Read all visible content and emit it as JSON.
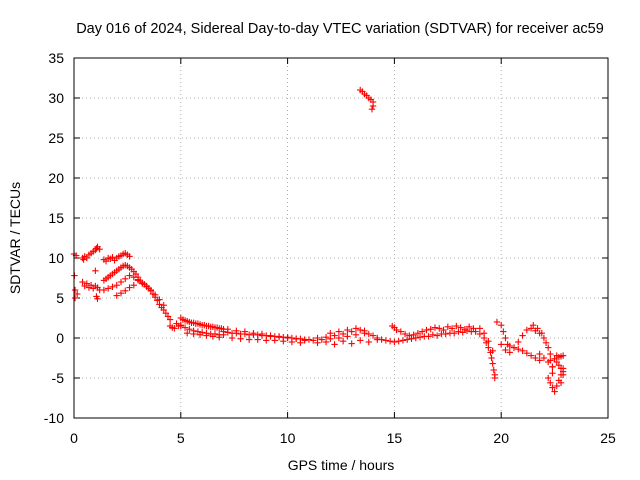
{
  "chart_data": {
    "type": "scatter",
    "title": "Day 016 of 2024, Sidereal Day-to-day VTEC variation (SDTVAR) for receiver ac59",
    "xlabel": "GPS time / hours",
    "ylabel": "SDTVAR / TECUs",
    "xlim": [
      0,
      25
    ],
    "ylim": [
      -10,
      35
    ],
    "xticks": [
      "0",
      "5",
      "10",
      "15",
      "20",
      "25"
    ],
    "yticks": [
      "-10",
      "-5",
      "0",
      "5",
      "10",
      "15",
      "20",
      "25",
      "30",
      "35"
    ],
    "grid": true,
    "marker": "+",
    "color": "#ff0000",
    "series": [
      {
        "name": "SDTVAR",
        "x": [
          0.0,
          0.02,
          0.05,
          0.05,
          0.1,
          0.15,
          0.4,
          0.45,
          0.5,
          0.6,
          0.7,
          0.8,
          0.9,
          1.0,
          1.05,
          1.1,
          1.2,
          0.4,
          0.5,
          0.6,
          0.7,
          0.8,
          0.9,
          1.0,
          1.1,
          1.2,
          1.0,
          1.05,
          1.1,
          1.4,
          1.5,
          1.6,
          1.7,
          1.8,
          1.9,
          2.0,
          2.1,
          2.2,
          2.3,
          2.4,
          2.5,
          2.6,
          1.4,
          1.5,
          1.6,
          1.7,
          1.8,
          1.9,
          2.0,
          2.1,
          2.2,
          2.3,
          2.4,
          2.5,
          2.6,
          2.7,
          2.8,
          2.9,
          3.0,
          1.4,
          1.6,
          1.8,
          2.0,
          2.2,
          2.4,
          2.6,
          2.8,
          3.0,
          2.0,
          2.2,
          2.4,
          2.6,
          2.8,
          3.0,
          3.1,
          3.2,
          3.3,
          3.4,
          3.5,
          3.6,
          3.7,
          3.8,
          3.9,
          4.0,
          4.1,
          4.2,
          4.3,
          4.4,
          4.5,
          3.2,
          3.4,
          3.6,
          3.8,
          4.0,
          4.2,
          4.5,
          4.6,
          4.7,
          4.8,
          4.9,
          5.0,
          5.0,
          5.1,
          5.2,
          5.3,
          5.4,
          5.5,
          5.6,
          5.7,
          5.8,
          5.9,
          6.0,
          6.1,
          6.2,
          6.3,
          6.4,
          6.5,
          6.6,
          6.7,
          6.8,
          6.9,
          7.0,
          5.0,
          5.2,
          5.4,
          5.6,
          5.8,
          6.0,
          6.2,
          6.4,
          6.6,
          6.8,
          7.0,
          5.3,
          5.6,
          5.9,
          6.2,
          6.5,
          6.8,
          7.0,
          7.2,
          7.4,
          7.6,
          7.8,
          8.0,
          8.2,
          8.4,
          8.6,
          8.8,
          9.0,
          9.2,
          9.4,
          9.6,
          9.8,
          10.0,
          10.2,
          10.4,
          10.6,
          10.8,
          11.0,
          7.2,
          7.6,
          8.0,
          8.4,
          8.8,
          9.2,
          9.6,
          10.0,
          10.4,
          10.8,
          7.4,
          7.8,
          8.2,
          8.6,
          9.0,
          9.4,
          9.8,
          10.2,
          10.6,
          11.2,
          11.4,
          11.6,
          11.8,
          12.0,
          12.2,
          12.4,
          12.6,
          12.8,
          13.0,
          13.2,
          13.4,
          13.6,
          13.8,
          14.0,
          14.2,
          14.4,
          14.6,
          14.8,
          11.4,
          11.8,
          12.2,
          12.6,
          13.0,
          13.4,
          13.8,
          14.2,
          12.0,
          12.4,
          12.8,
          13.2,
          13.6,
          13.4,
          13.5,
          13.6,
          13.7,
          13.8,
          13.9,
          14.0,
          14.0,
          13.95,
          14.9,
          15.0,
          15.1,
          15.3,
          15.5,
          15.7,
          15.9,
          16.1,
          16.3,
          16.5,
          16.7,
          16.9,
          17.1,
          17.3,
          17.5,
          17.7,
          17.9,
          18.1,
          18.3,
          18.5,
          18.7,
          15.0,
          15.4,
          15.8,
          16.2,
          16.6,
          17.0,
          17.4,
          17.8,
          18.2,
          18.6,
          15.2,
          15.6,
          16.0,
          16.4,
          16.8,
          17.2,
          17.6,
          18.0,
          18.4,
          18.8,
          19.0,
          19.2,
          19.3,
          19.4,
          19.5,
          19.55,
          19.6,
          19.65,
          19.7,
          19.7,
          19.0,
          19.2,
          19.4,
          19.6,
          19.8,
          20.0,
          20.1,
          20.2,
          20.3,
          20.0,
          20.2,
          20.4,
          20.6,
          20.8,
          21.0,
          21.2,
          21.4,
          21.6,
          21.8,
          20.4,
          20.6,
          20.8,
          21.0,
          21.2,
          21.4,
          21.6,
          21.8,
          21.5,
          21.7,
          21.9,
          22.0,
          22.1,
          22.2,
          22.3,
          22.3,
          22.4,
          22.4,
          21.8,
          22.0,
          22.2,
          22.4,
          22.2,
          22.3,
          22.4,
          22.5,
          22.6,
          22.7,
          22.8,
          22.9,
          22.5,
          22.6,
          22.7,
          22.8,
          22.9,
          22.6,
          22.7,
          22.8,
          22.9,
          22.9,
          22.8
        ],
        "y": [
          10.5,
          7.8,
          6.0,
          5.0,
          10.3,
          5.5,
          10.0,
          9.8,
          10.2,
          10.0,
          10.4,
          10.6,
          10.8,
          11.0,
          11.2,
          11.4,
          11.1,
          7.0,
          6.5,
          6.8,
          6.3,
          6.6,
          6.2,
          6.5,
          6.3,
          6.0,
          8.4,
          5.2,
          4.9,
          9.8,
          9.6,
          10.0,
          9.9,
          10.1,
          9.7,
          10.0,
          10.2,
          10.3,
          10.5,
          10.6,
          10.4,
          10.2,
          7.2,
          7.4,
          7.6,
          7.8,
          8.0,
          8.2,
          8.4,
          8.6,
          8.8,
          9.0,
          9.1,
          9.0,
          8.8,
          8.6,
          8.3,
          8.0,
          7.6,
          6.0,
          6.2,
          6.4,
          6.6,
          7.0,
          7.4,
          7.8,
          7.6,
          7.2,
          5.3,
          5.6,
          5.9,
          6.3,
          6.6,
          7.3,
          7.1,
          6.9,
          6.7,
          6.5,
          6.2,
          5.9,
          5.5,
          5.1,
          4.7,
          4.2,
          3.8,
          3.5,
          3.1,
          2.7,
          2.3,
          6.8,
          6.4,
          6.0,
          5.4,
          4.8,
          4.1,
          1.5,
          1.3,
          1.2,
          1.8,
          1.5,
          1.6,
          2.5,
          2.3,
          2.2,
          2.1,
          2.0,
          1.9,
          1.9,
          1.8,
          1.8,
          1.7,
          1.6,
          1.6,
          1.5,
          1.5,
          1.4,
          1.4,
          1.3,
          1.3,
          1.2,
          1.2,
          1.1,
          1.5,
          1.3,
          1.1,
          0.9,
          0.8,
          0.7,
          0.6,
          0.5,
          0.5,
          0.4,
          0.4,
          0.6,
          0.5,
          0.4,
          0.3,
          0.2,
          0.1,
          0.8,
          0.7,
          0.6,
          0.6,
          0.5,
          0.5,
          0.4,
          0.4,
          0.4,
          0.3,
          0.3,
          0.2,
          0.2,
          0.1,
          0.1,
          0.0,
          0.0,
          -0.1,
          -0.1,
          -0.2,
          -0.2,
          1.1,
          0.9,
          0.8,
          0.6,
          0.5,
          0.3,
          0.2,
          0.1,
          -0.1,
          -0.3,
          0.0,
          -0.1,
          -0.2,
          -0.2,
          -0.3,
          -0.3,
          -0.4,
          -0.5,
          -0.6,
          -0.3,
          0.0,
          -0.2,
          0.1,
          -0.1,
          0.3,
          0.0,
          0.5,
          0.2,
          0.8,
          0.4,
          1.0,
          0.6,
          0.5,
          0.3,
          0.0,
          -0.2,
          -0.3,
          -0.4,
          -0.6,
          -0.5,
          -0.8,
          -0.4,
          -0.7,
          -0.3,
          -0.5,
          -0.2,
          0.6,
          0.8,
          1.0,
          1.2,
          0.9,
          31.0,
          30.8,
          30.5,
          30.3,
          30.0,
          29.8,
          29.5,
          29.0,
          28.6,
          1.5,
          1.3,
          1.0,
          0.8,
          0.5,
          0.3,
          0.4,
          0.6,
          0.8,
          1.0,
          1.1,
          1.3,
          1.2,
          1.0,
          1.4,
          1.2,
          1.5,
          1.3,
          1.1,
          1.4,
          1.2,
          -0.5,
          -0.3,
          -0.1,
          0.1,
          0.2,
          0.3,
          0.5,
          0.6,
          0.7,
          0.8,
          -0.4,
          -0.2,
          0.0,
          0.2,
          0.4,
          0.5,
          0.6,
          0.8,
          0.9,
          0.8,
          0.5,
          0.0,
          -0.6,
          -1.2,
          -1.8,
          -2.5,
          -3.2,
          -4.0,
          -4.6,
          -5.0,
          1.2,
          0.6,
          -0.4,
          -1.6,
          2.0,
          1.6,
          0.8,
          0.0,
          -0.8,
          -0.8,
          -1.5,
          -1.8,
          -1.2,
          -0.5,
          0.3,
          1.0,
          1.2,
          0.9,
          0.6,
          -1.0,
          -1.2,
          -1.4,
          -1.6,
          -1.9,
          -2.2,
          -2.5,
          -2.8,
          1.6,
          1.2,
          0.6,
          0.0,
          -0.6,
          -1.2,
          -2.0,
          -2.8,
          -3.6,
          -4.4,
          -2.0,
          -2.5,
          -3.0,
          -3.6,
          -5.0,
          -5.6,
          -6.2,
          -6.7,
          -6.0,
          -5.3,
          -4.6,
          -3.8,
          -2.6,
          -3.0,
          -3.4,
          -3.8,
          -4.2,
          -2.2,
          -2.4,
          -2.3,
          -2.2,
          -4.6,
          -5.6
        ]
      }
    ]
  }
}
